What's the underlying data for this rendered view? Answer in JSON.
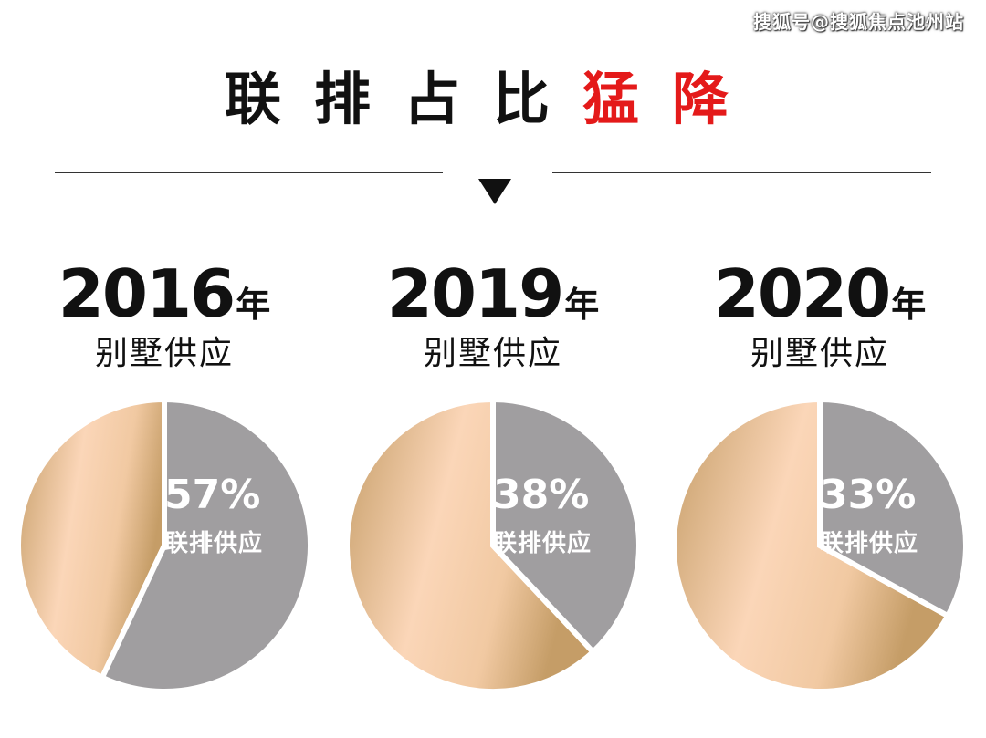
{
  "watermark": "搜狐号@搜狐焦点池州站",
  "headline": {
    "normal": "联排占比",
    "highlight": "猛降"
  },
  "colors": {
    "slice_share": "#a09ea0",
    "slice_rest_light": "#fbd6b8",
    "slice_rest_dark": "#c59d67",
    "highlight": "#e41a1a"
  },
  "chart_data": [
    {
      "type": "pie",
      "year": "2016",
      "year_suffix": "年",
      "subtitle": "别墅供应",
      "value_pct": 57,
      "label": "57%",
      "caption": "联排供应"
    },
    {
      "type": "pie",
      "year": "2019",
      "year_suffix": "年",
      "subtitle": "别墅供应",
      "value_pct": 38,
      "label": "38%",
      "caption": "联排供应"
    },
    {
      "type": "pie",
      "year": "2020",
      "year_suffix": "年",
      "subtitle": "别墅供应",
      "value_pct": 33,
      "label": "33%",
      "caption": "联排供应"
    }
  ]
}
